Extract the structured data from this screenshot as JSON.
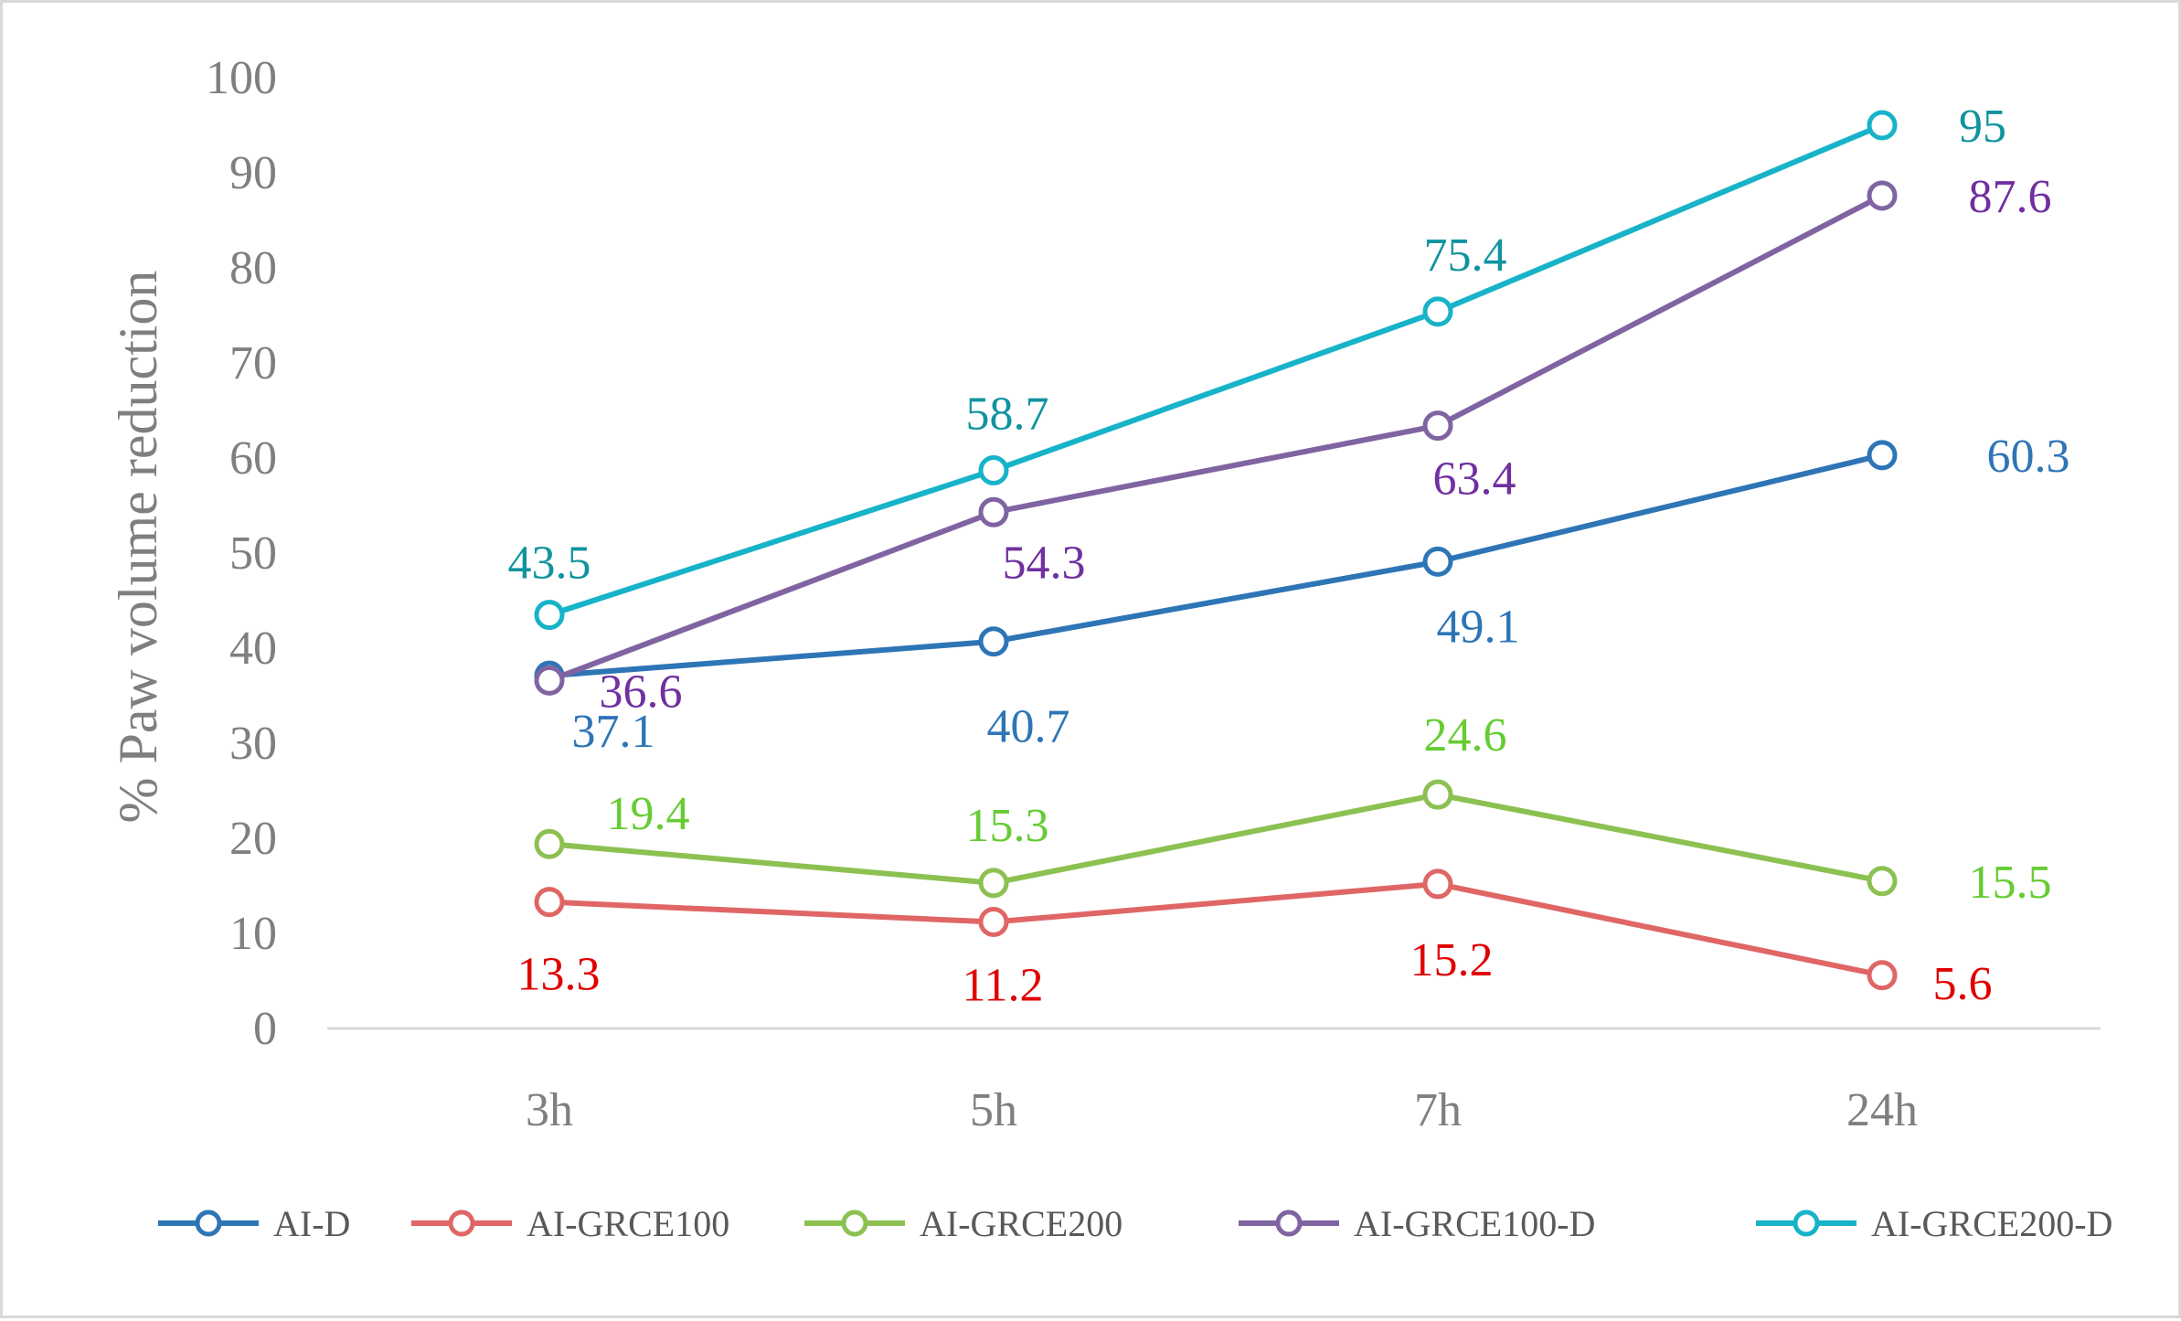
{
  "chart_data": {
    "type": "line",
    "title": "",
    "xlabel": "",
    "ylabel": "% Paw volume reduction",
    "categories": [
      "3h",
      "5h",
      "7h",
      "24h"
    ],
    "ylim": [
      0,
      100
    ],
    "yticks": [
      0,
      10,
      20,
      30,
      40,
      50,
      60,
      70,
      80,
      90,
      100
    ],
    "grid": false,
    "legend_position": "bottom",
    "series": [
      {
        "name": "AI-D",
        "values": [
          37.1,
          40.7,
          49.1,
          60.3
        ],
        "color": "#2e75b6",
        "labels": [
          "37.1",
          "40.7",
          "49.1",
          "60.3"
        ]
      },
      {
        "name": "AI-GRCE100",
        "values": [
          13.3,
          11.2,
          15.2,
          5.6
        ],
        "color": "#e06666",
        "label_color": "#e00000",
        "labels": [
          "13.3",
          "11.2",
          "15.2",
          "5.6"
        ]
      },
      {
        "name": "AI-GRCE200",
        "values": [
          19.4,
          15.3,
          24.6,
          15.5
        ],
        "color": "#8cc152",
        "label_color": "#66cc33",
        "labels": [
          "19.4",
          "15.3",
          "24.6",
          "15.5"
        ]
      },
      {
        "name": "AI-GRCE100-D",
        "values": [
          36.6,
          54.3,
          63.4,
          87.6
        ],
        "color": "#8064a2",
        "label_color": "#7030a0",
        "labels": [
          "36.6",
          "54.3",
          "63.4",
          "87.6"
        ]
      },
      {
        "name": "AI-GRCE200-D",
        "values": [
          43.5,
          58.7,
          75.4,
          95
        ],
        "color": "#17b3c8",
        "label_color": "#10949f",
        "labels": [
          "43.5",
          "58.7",
          "75.4",
          "95"
        ]
      }
    ]
  }
}
